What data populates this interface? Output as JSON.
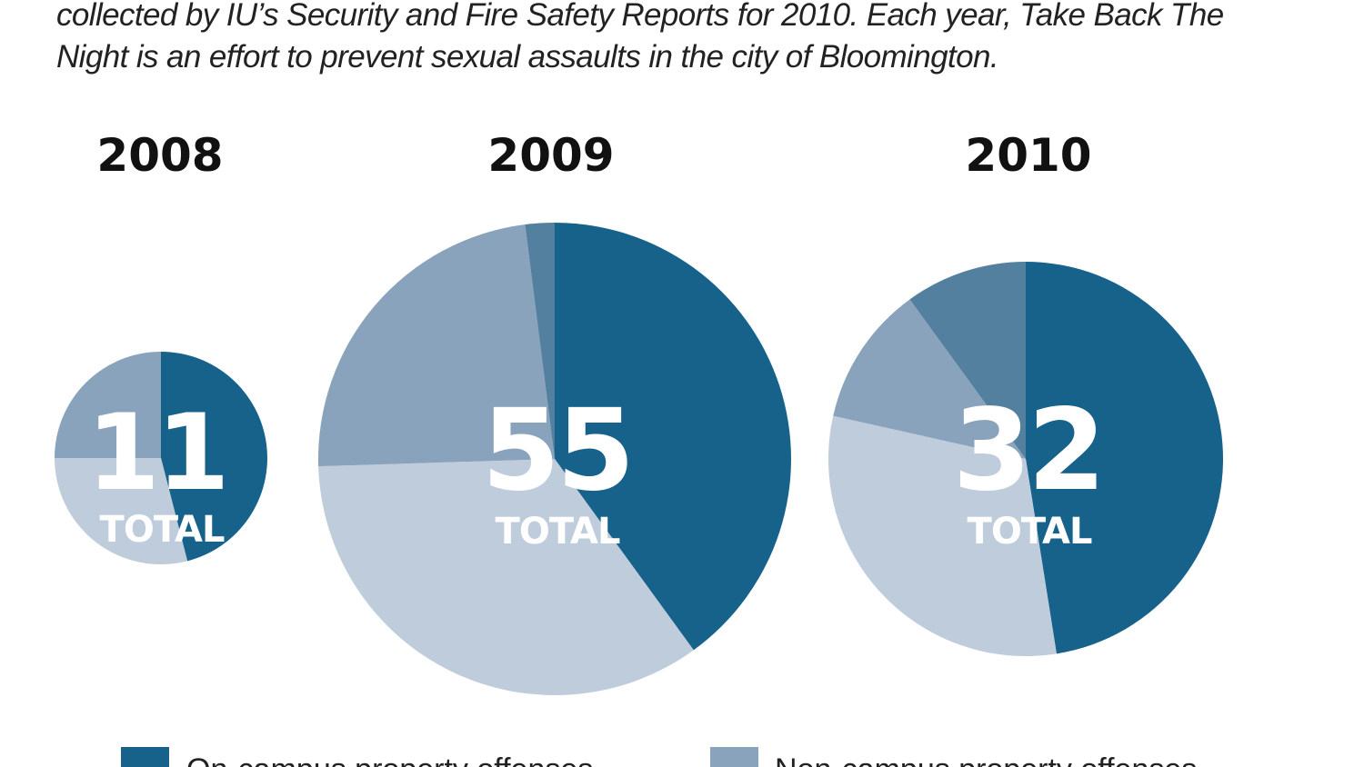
{
  "intro": {
    "line1": "collected by IU’s Security and Fire Safety Reports for 2010. Each year, Take Back The",
    "line2": "Night is an effort to prevent sexual assaults in the city of Bloomington."
  },
  "colors": {
    "s0": "#16628b",
    "s1": "#54809f",
    "s2": "#8aa3bc",
    "s3": "#bfccdb"
  },
  "legend": [
    {
      "label": "On-campus property offenses",
      "color": "#16628b"
    },
    {
      "label": "Non-campus property offenses",
      "color": "#8aa3bc"
    }
  ],
  "chart_data": [
    {
      "type": "pie",
      "title": "2008",
      "total": 11,
      "total_label": "TOTAL",
      "slices": [
        {
          "value": 46,
          "color": "#16628b"
        },
        {
          "value": 29,
          "color": "#bfccdb"
        },
        {
          "value": 25,
          "color": "#8aa3bc"
        }
      ]
    },
    {
      "type": "pie",
      "title": "2009",
      "total": 55,
      "total_label": "TOTAL",
      "slices": [
        {
          "value": 40,
          "color": "#16628b"
        },
        {
          "value": 34.5,
          "color": "#bfccdb"
        },
        {
          "value": 23.5,
          "color": "#8aa3bc"
        },
        {
          "value": 2,
          "color": "#54809f"
        }
      ]
    },
    {
      "type": "pie",
      "title": "2010",
      "total": 32,
      "total_label": "TOTAL",
      "slices": [
        {
          "value": 47.5,
          "color": "#16628b"
        },
        {
          "value": 31,
          "color": "#bfccdb"
        },
        {
          "value": 11.5,
          "color": "#8aa3bc"
        },
        {
          "value": 10,
          "color": "#54809f"
        }
      ]
    }
  ]
}
